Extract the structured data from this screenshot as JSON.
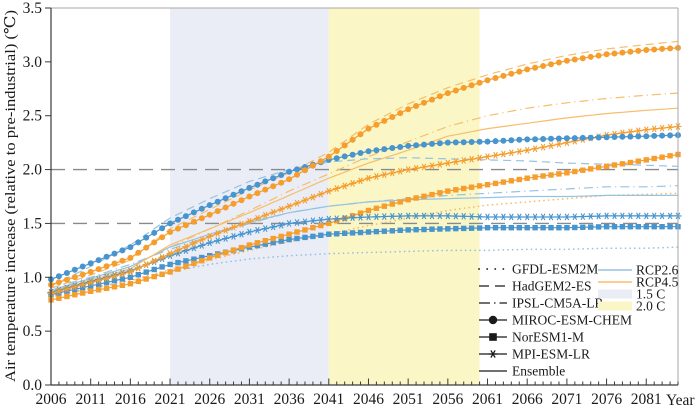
{
  "chart_data": {
    "type": "line",
    "title": "",
    "y_axis_title": "Air temperature increase (relative to pre-industrial) (℃)",
    "x_axis_title": "Year",
    "xlim": [
      2006,
      2085
    ],
    "ylim": [
      0.0,
      3.5
    ],
    "x_ticks": [
      2006,
      2011,
      2016,
      2021,
      2026,
      2031,
      2036,
      2041,
      2046,
      2051,
      2056,
      2061,
      2066,
      2071,
      2076,
      2081
    ],
    "y_ticks": [
      0.0,
      0.5,
      1.0,
      1.5,
      2.0,
      2.5,
      3.0,
      3.5
    ],
    "reference_lines": [
      1.5,
      2.0
    ],
    "bands": [
      {
        "label": "1.5 C",
        "from": 2021,
        "to": 2041,
        "color": "#EAEDF6"
      },
      {
        "label": "2.0 C",
        "from": 2041,
        "to": 2060,
        "color": "#FBF6C5"
      }
    ],
    "colors": {
      "rcp26_strong": "#4894CE",
      "rcp26_light": "#96C2E3",
      "rcp45_strong": "#F59D2D",
      "rcp45_light": "#F7BD6B",
      "reference_line": "#8A8A8A",
      "legend_glyph": "#1A1A1A",
      "axis": "#3A3A3A",
      "frame": "#A7A7A7"
    },
    "x": [
      2006,
      2011,
      2016,
      2021,
      2026,
      2031,
      2036,
      2041,
      2046,
      2051,
      2056,
      2061,
      2066,
      2071,
      2076,
      2081,
      2085
    ],
    "series": [
      {
        "model": "GFDL-ESM2M",
        "scenario": "RCP2.6",
        "style": "dotted",
        "weight": "light",
        "values": [
          0.83,
          0.9,
          0.97,
          1.05,
          1.12,
          1.17,
          1.2,
          1.22,
          1.23,
          1.24,
          1.25,
          1.25,
          1.26,
          1.26,
          1.27,
          1.27,
          1.28
        ]
      },
      {
        "model": "GFDL-ESM2M",
        "scenario": "RCP4.5",
        "style": "dotted",
        "weight": "light",
        "values": [
          0.82,
          0.89,
          0.97,
          1.07,
          1.16,
          1.25,
          1.33,
          1.4,
          1.48,
          1.55,
          1.62,
          1.67,
          1.7,
          1.73,
          1.76,
          1.77,
          1.78
        ]
      },
      {
        "model": "IPSL-CM5A-LR",
        "scenario": "RCP2.6",
        "style": "dashdot",
        "weight": "light",
        "values": [
          0.9,
          1.0,
          1.12,
          1.26,
          1.38,
          1.5,
          1.6,
          1.66,
          1.7,
          1.73,
          1.76,
          1.78,
          1.8,
          1.82,
          1.84,
          1.84,
          1.85
        ]
      },
      {
        "model": "IPSL-CM5A-LR",
        "scenario": "RCP4.5",
        "style": "dashdot",
        "weight": "light",
        "values": [
          0.88,
          0.98,
          1.1,
          1.28,
          1.45,
          1.62,
          1.8,
          1.96,
          2.12,
          2.26,
          2.4,
          2.5,
          2.57,
          2.62,
          2.66,
          2.69,
          2.71
        ]
      },
      {
        "model": "Ensemble",
        "scenario": "RCP2.6",
        "style": "solid",
        "weight": "light",
        "values": [
          0.88,
          0.99,
          1.1,
          1.28,
          1.4,
          1.51,
          1.6,
          1.66,
          1.7,
          1.72,
          1.73,
          1.74,
          1.75,
          1.75,
          1.76,
          1.76,
          1.76
        ]
      },
      {
        "model": "Ensemble",
        "scenario": "RCP4.5",
        "style": "solid",
        "weight": "light",
        "values": [
          0.87,
          0.97,
          1.08,
          1.3,
          1.45,
          1.6,
          1.76,
          1.92,
          2.06,
          2.18,
          2.31,
          2.38,
          2.43,
          2.48,
          2.52,
          2.55,
          2.57
        ]
      },
      {
        "model": "HadGEM2-ES",
        "scenario": "RCP2.6",
        "style": "dashed",
        "weight": "light",
        "values": [
          0.92,
          1.1,
          1.3,
          1.55,
          1.73,
          1.89,
          2.0,
          2.07,
          2.1,
          2.11,
          2.1,
          2.09,
          2.08,
          2.06,
          2.05,
          2.04,
          2.03
        ]
      },
      {
        "model": "HadGEM2-ES",
        "scenario": "RCP4.5",
        "style": "dashed",
        "weight": "light",
        "values": [
          0.9,
          1.02,
          1.16,
          1.45,
          1.63,
          1.81,
          1.97,
          2.16,
          2.42,
          2.61,
          2.76,
          2.88,
          2.98,
          3.06,
          3.12,
          3.16,
          3.19
        ]
      },
      {
        "model": "NorESM1-M",
        "scenario": "RCP2.6",
        "style": "square",
        "weight": "strong",
        "values": [
          0.84,
          0.92,
          1.0,
          1.12,
          1.2,
          1.28,
          1.35,
          1.4,
          1.42,
          1.44,
          1.45,
          1.46,
          1.46,
          1.46,
          1.47,
          1.47,
          1.47
        ]
      },
      {
        "model": "NorESM1-M",
        "scenario": "RCP4.5",
        "style": "square",
        "weight": "strong",
        "values": [
          0.79,
          0.87,
          0.94,
          1.05,
          1.18,
          1.3,
          1.4,
          1.5,
          1.62,
          1.72,
          1.8,
          1.86,
          1.92,
          1.97,
          2.03,
          2.09,
          2.14
        ]
      },
      {
        "model": "MPI-ESM-LR",
        "scenario": "RCP2.6",
        "style": "asterisk",
        "weight": "strong",
        "values": [
          0.86,
          0.96,
          1.06,
          1.2,
          1.32,
          1.42,
          1.5,
          1.54,
          1.56,
          1.57,
          1.57,
          1.56,
          1.56,
          1.56,
          1.57,
          1.57,
          1.57
        ]
      },
      {
        "model": "MPI-ESM-LR",
        "scenario": "RCP4.5",
        "style": "asterisk",
        "weight": "strong",
        "values": [
          0.85,
          0.95,
          1.05,
          1.22,
          1.38,
          1.52,
          1.66,
          1.8,
          1.92,
          2.0,
          2.06,
          2.12,
          2.18,
          2.25,
          2.32,
          2.37,
          2.4
        ]
      },
      {
        "model": "MIROC-ESM-CHEM",
        "scenario": "RCP2.6",
        "style": "circle",
        "weight": "strong",
        "values": [
          0.98,
          1.13,
          1.28,
          1.5,
          1.67,
          1.83,
          1.98,
          2.09,
          2.17,
          2.22,
          2.25,
          2.26,
          2.28,
          2.29,
          2.3,
          2.31,
          2.32
        ]
      },
      {
        "model": "MIROC-ESM-CHEM",
        "scenario": "RCP4.5",
        "style": "circle",
        "weight": "strong",
        "values": [
          0.93,
          1.05,
          1.18,
          1.42,
          1.58,
          1.75,
          1.91,
          2.12,
          2.38,
          2.56,
          2.71,
          2.83,
          2.93,
          3.01,
          3.07,
          3.11,
          3.13
        ]
      }
    ],
    "legend": {
      "models": [
        {
          "label": "GFDL-ESM2M",
          "style": "dotted"
        },
        {
          "label": "HadGEM2-ES",
          "style": "dashed"
        },
        {
          "label": "IPSL-CM5A-LR",
          "style": "dashdot"
        },
        {
          "label": "MIROC-ESM-CHEM",
          "style": "circle"
        },
        {
          "label": "NorESM1-M",
          "style": "square"
        },
        {
          "label": "MPI-ESM-LR",
          "style": "asterisk"
        },
        {
          "label": "Ensemble",
          "style": "solid"
        }
      ],
      "scenarios": [
        {
          "label": "RCP2.6",
          "swatch": "line",
          "color": "#96C2E3"
        },
        {
          "label": "RCP4.5",
          "swatch": "line",
          "color": "#F7BD6B"
        },
        {
          "label": "1.5 C",
          "swatch": "patch",
          "color": "#EAEDF6"
        },
        {
          "label": "2.0 C",
          "swatch": "patch",
          "color": "#FBF6C5"
        }
      ]
    }
  }
}
